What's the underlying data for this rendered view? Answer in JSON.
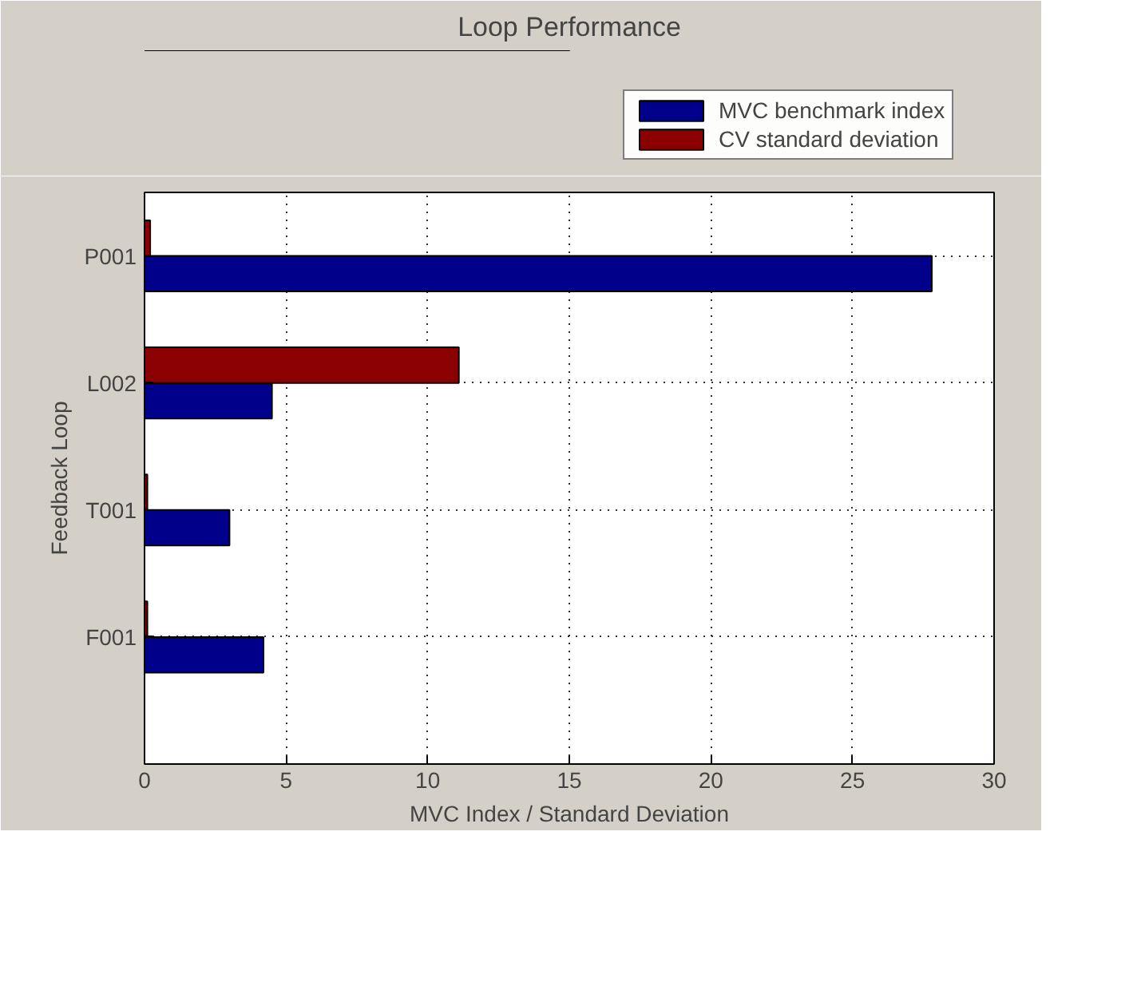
{
  "chart_data": {
    "type": "bar",
    "orientation": "horizontal",
    "title": "Loop Performance",
    "xlabel": "MVC Index / Standard Deviation",
    "ylabel": "Feedback Loop",
    "categories": [
      "P001",
      "L002",
      "T001",
      "F001"
    ],
    "series": [
      {
        "name": "MVC benchmark index",
        "color": "#00008b",
        "values": [
          27.8,
          4.5,
          3.0,
          4.2
        ]
      },
      {
        "name": "CV standard deviation",
        "color": "#8b0000",
        "values": [
          0.2,
          11.1,
          0.1,
          0.1
        ]
      }
    ],
    "xlim": [
      0,
      30
    ],
    "xticks": [
      0,
      5,
      10,
      15,
      20,
      25,
      30
    ],
    "grid": true,
    "legend": "top"
  }
}
